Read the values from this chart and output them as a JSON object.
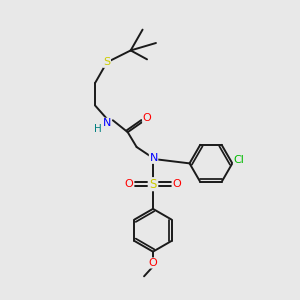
{
  "bg_color": "#e8e8e8",
  "atom_colors": {
    "S_thio": "#cccc00",
    "S_sulfonyl": "#cccc00",
    "N": "#0000ff",
    "O": "#ff0000",
    "Cl": "#00bb00",
    "C": "#000000",
    "H": "#008080"
  },
  "bond_color": "#1a1a1a",
  "lw": 1.4
}
